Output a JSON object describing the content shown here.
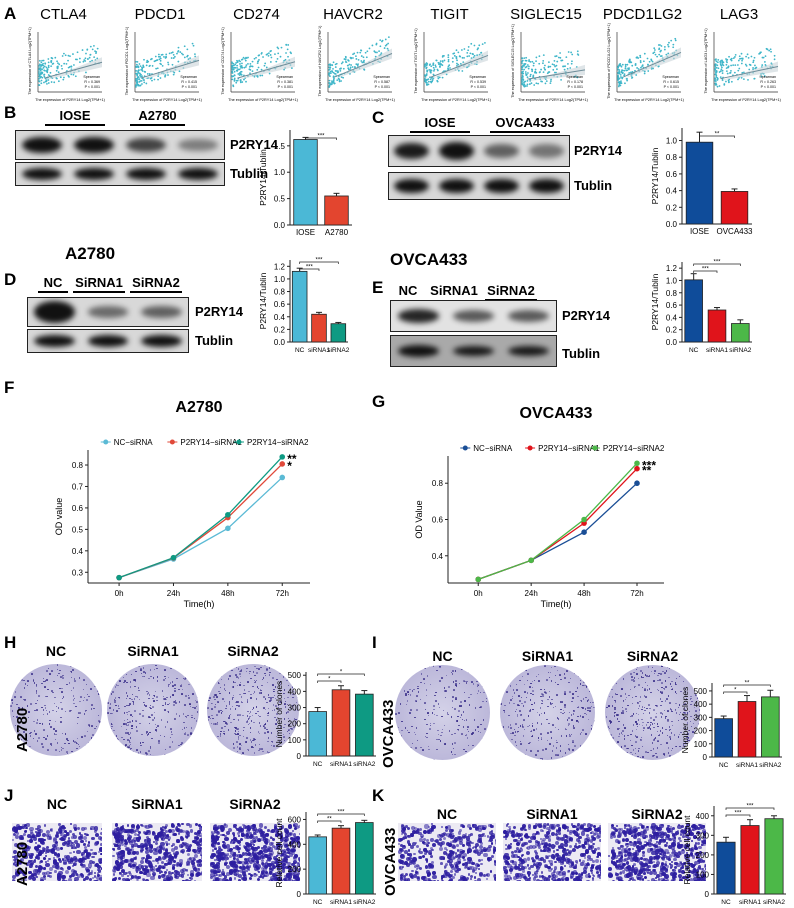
{
  "panel_labels": {
    "A": "A",
    "B": "B",
    "C": "C",
    "D": "D",
    "E": "E",
    "F": "F",
    "G": "G",
    "H": "H",
    "I": "I",
    "J": "J",
    "K": "K"
  },
  "colors": {
    "a2780": {
      "nc": "#5bbad5",
      "si1": "#e0493a",
      "si2": "#0e9a83"
    },
    "ovca433": {
      "nc": "#1a4e96",
      "si1": "#e0141b",
      "si2": "#4cb848"
    },
    "scatter": "#3fb6c9"
  },
  "panel_a": {
    "x_label": "The expression of P2RY14 Log2(TPM+1)",
    "stat_name": "Spearman",
    "genes": [
      {
        "name": "CTLA4",
        "y_label": "The expression of CTLA4 Log2(TPM+1)",
        "r": "R = 0.369",
        "p": "P < 0.001"
      },
      {
        "name": "PDCD1",
        "y_label": "The expression of PDCD1 Log2(TPM+1)",
        "r": "R = 0.415",
        "p": "P < 0.001"
      },
      {
        "name": "CD274",
        "y_label": "The expression of CD274 Log2(TPM+1)",
        "r": "R = 0.381",
        "p": "P < 0.001"
      },
      {
        "name": "HAVCR2",
        "y_label": "The expression of HAVCR2 Log2(TPM+1)",
        "r": "R = 0.587",
        "p": "P < 0.001"
      },
      {
        "name": "TIGIT",
        "y_label": "The expression of TIGIT Log2(TPM+1)",
        "r": "R = 0.539",
        "p": "P < 0.001"
      },
      {
        "name": "SIGLEC15",
        "y_label": "The expression of SIGLEC15 Log2(TPM+1)",
        "r": "R = 0.178",
        "p": "P < 0.001"
      },
      {
        "name": "PDCD1LG2",
        "y_label": "The expression of PDCD1LG2 Log2(TPM+1)",
        "r": "R = 0.615",
        "p": "P < 0.001"
      },
      {
        "name": "LAG3",
        "y_label": "The expression of LAG3 Log2(TPM+1)",
        "r": "R = 0.263",
        "p": "P < 0.001"
      }
    ]
  },
  "blots": {
    "B": {
      "lanes": [
        "IOSE",
        "A2780"
      ],
      "bands": [
        "P2RY14",
        "Tublin"
      ]
    },
    "C": {
      "lanes": [
        "IOSE",
        "OVCA433"
      ],
      "bands": [
        "P2RY14",
        "Tublin"
      ]
    },
    "D": {
      "title": "A2780",
      "lanes": [
        "NC",
        "SiRNA1",
        "SiRNA2"
      ],
      "bands": [
        "P2RY14",
        "Tublin"
      ]
    },
    "E": {
      "title": "OVCA433",
      "lanes": [
        "NC",
        "SiRNA1",
        "SiRNA2"
      ],
      "bands": [
        "P2RY14",
        "Tublin"
      ]
    }
  },
  "images": {
    "H": {
      "row_label": "A2780",
      "columns": [
        "NC",
        "SiRNA1",
        "SiRNA2"
      ]
    },
    "I": {
      "row_label": "OVCA433",
      "columns": [
        "NC",
        "SiRNA1",
        "SiRNA2"
      ]
    },
    "J": {
      "row_label": "A2780",
      "columns": [
        "NC",
        "SiRNA1",
        "SiRNA2"
      ]
    },
    "K": {
      "row_label": "OVCA433",
      "columns": [
        "NC",
        "SiRNA1",
        "SiRNA2"
      ]
    }
  },
  "chart_data": [
    {
      "id": "B",
      "type": "bar",
      "ylabel": "P2RY14/Tublin",
      "categories": [
        "IOSE",
        "A2780"
      ],
      "values": [
        1.62,
        0.55
      ],
      "errors": [
        0.04,
        0.05
      ],
      "ylim": [
        0,
        1.8
      ],
      "yticks": [
        "0.0",
        "0.5",
        "1.0",
        "1.5"
      ],
      "colors": [
        "#4bb8d6",
        "#e3452f"
      ],
      "sig": [
        {
          "from": 0,
          "to": 1,
          "label": "***"
        }
      ]
    },
    {
      "id": "C",
      "type": "bar",
      "ylabel": "P2RY14/Tublin",
      "categories": [
        "IOSE",
        "OVCA433"
      ],
      "values": [
        0.98,
        0.39
      ],
      "errors": [
        0.12,
        0.03
      ],
      "ylim": [
        0,
        1.15
      ],
      "yticks": [
        "0.0",
        "0.2",
        "0.4",
        "0.6",
        "0.8",
        "1.0"
      ],
      "colors": [
        "#0f4c9a",
        "#e0141b"
      ],
      "sig": [
        {
          "from": 0,
          "to": 1,
          "label": "**"
        }
      ]
    },
    {
      "id": "D",
      "type": "bar",
      "ylabel": "P2RY14/Tublin",
      "categories": [
        "NC",
        "siRNA1",
        "siRNA2"
      ],
      "values": [
        1.12,
        0.44,
        0.29
      ],
      "errors": [
        0.05,
        0.03,
        0.02
      ],
      "ylim": [
        0,
        1.3
      ],
      "yticks": [
        "0.0",
        "0.2",
        "0.4",
        "0.6",
        "0.8",
        "1.0",
        "1.2"
      ],
      "colors": [
        "#4bb8d6",
        "#e3452f",
        "#0e9a83"
      ],
      "sig": [
        {
          "from": 0,
          "to": 1,
          "label": "***"
        },
        {
          "from": 0,
          "to": 2,
          "label": "***"
        }
      ]
    },
    {
      "id": "E",
      "type": "bar",
      "ylabel": "P2RY14/Tublin",
      "categories": [
        "NC",
        "siRNA1",
        "siRNA2"
      ],
      "values": [
        1.01,
        0.52,
        0.3
      ],
      "errors": [
        0.1,
        0.04,
        0.06
      ],
      "ylim": [
        0,
        1.3
      ],
      "yticks": [
        "0.0",
        "0.2",
        "0.4",
        "0.6",
        "0.8",
        "1.0",
        "1.2"
      ],
      "colors": [
        "#0f4c9a",
        "#e0141b",
        "#4cb848"
      ],
      "sig": [
        {
          "from": 0,
          "to": 1,
          "label": "***"
        },
        {
          "from": 0,
          "to": 2,
          "label": "***"
        }
      ]
    },
    {
      "id": "F",
      "type": "line",
      "title": "A2780",
      "xlabel": "Time(h)",
      "ylabel": "OD value",
      "x": [
        "0h",
        "24h",
        "48h",
        "72h"
      ],
      "ylim": [
        0.25,
        0.87
      ],
      "yticks": [
        "0.3",
        "0.4",
        "0.5",
        "0.6",
        "0.7",
        "0.8"
      ],
      "series": [
        {
          "name": "NC−siRNA",
          "values": [
            0.275,
            0.362,
            0.505,
            0.742
          ],
          "color": "#5bbad5"
        },
        {
          "name": "P2RY14−siRNA1",
          "values": [
            0.275,
            0.367,
            0.555,
            0.805
          ],
          "color": "#e0493a"
        },
        {
          "name": "P2RY14−siRNA2",
          "values": [
            0.275,
            0.368,
            0.568,
            0.838
          ],
          "color": "#0e9a83"
        }
      ],
      "annotations": [
        {
          "series": 2,
          "label": "**"
        },
        {
          "series": 1,
          "label": "*"
        }
      ]
    },
    {
      "id": "G",
      "type": "line",
      "title": "OVCA433",
      "xlabel": "Time(h)",
      "ylabel": "OD Value",
      "x": [
        "0h",
        "24h",
        "48h",
        "72h"
      ],
      "ylim": [
        0.25,
        0.95
      ],
      "yticks": [
        "0.4",
        "0.6",
        "0.8"
      ],
      "series": [
        {
          "name": "NC−siRNA",
          "values": [
            0.27,
            0.375,
            0.53,
            0.8
          ],
          "color": "#1a4e96"
        },
        {
          "name": "P2RY14−siRNA1",
          "values": [
            0.27,
            0.375,
            0.58,
            0.88
          ],
          "color": "#e0141b"
        },
        {
          "name": "P2RY14−siRNA2",
          "values": [
            0.27,
            0.375,
            0.6,
            0.91
          ],
          "color": "#4cb848"
        }
      ],
      "annotations": [
        {
          "series": 2,
          "label": "***"
        },
        {
          "series": 1,
          "label": "**"
        }
      ]
    },
    {
      "id": "H",
      "type": "bar",
      "ylabel": "Number of clones",
      "categories": [
        "NC",
        "siRNA1",
        "siRNA2"
      ],
      "values": [
        275,
        410,
        383
      ],
      "errors": [
        25,
        25,
        22
      ],
      "ylim": [
        0,
        520
      ],
      "yticks": [
        "0",
        "100",
        "200",
        "300",
        "400",
        "500"
      ],
      "colors": [
        "#4bb8d6",
        "#e3452f",
        "#0e9a83"
      ],
      "sig": [
        {
          "from": 0,
          "to": 1,
          "label": "*"
        },
        {
          "from": 0,
          "to": 2,
          "label": "*"
        }
      ]
    },
    {
      "id": "I",
      "type": "bar",
      "ylabel": "Number of clones",
      "categories": [
        "NC",
        "siRNA1",
        "siRNA2"
      ],
      "values": [
        290,
        420,
        455
      ],
      "errors": [
        20,
        45,
        50
      ],
      "ylim": [
        0,
        560
      ],
      "yticks": [
        "0",
        "100",
        "200",
        "300",
        "400",
        "500"
      ],
      "colors": [
        "#0f4c9a",
        "#e0141b",
        "#4cb848"
      ],
      "sig": [
        {
          "from": 0,
          "to": 1,
          "label": "*"
        },
        {
          "from": 0,
          "to": 2,
          "label": "**"
        }
      ]
    },
    {
      "id": "J",
      "type": "bar",
      "ylabel": "Relative cell count",
      "categories": [
        "NC",
        "siRNA1",
        "siRNA2"
      ],
      "values": [
        460,
        530,
        575
      ],
      "errors": [
        15,
        20,
        18
      ],
      "ylim": [
        0,
        660
      ],
      "yticks": [
        "0",
        "200",
        "400",
        "600"
      ],
      "colors": [
        "#4bb8d6",
        "#e3452f",
        "#0e9a83"
      ],
      "sig": [
        {
          "from": 0,
          "to": 1,
          "label": "**"
        },
        {
          "from": 0,
          "to": 2,
          "label": "***"
        }
      ]
    },
    {
      "id": "K",
      "type": "bar",
      "ylabel": "Relative cell count",
      "categories": [
        "NC",
        "siRNA1",
        "siRNA2"
      ],
      "values": [
        265,
        350,
        385
      ],
      "errors": [
        25,
        30,
        15
      ],
      "ylim": [
        0,
        450
      ],
      "yticks": [
        "0",
        "100",
        "200",
        "300",
        "400"
      ],
      "colors": [
        "#0f4c9a",
        "#e0141b",
        "#4cb848"
      ],
      "sig": [
        {
          "from": 0,
          "to": 1,
          "label": "***"
        },
        {
          "from": 0,
          "to": 2,
          "label": "***"
        }
      ]
    }
  ]
}
